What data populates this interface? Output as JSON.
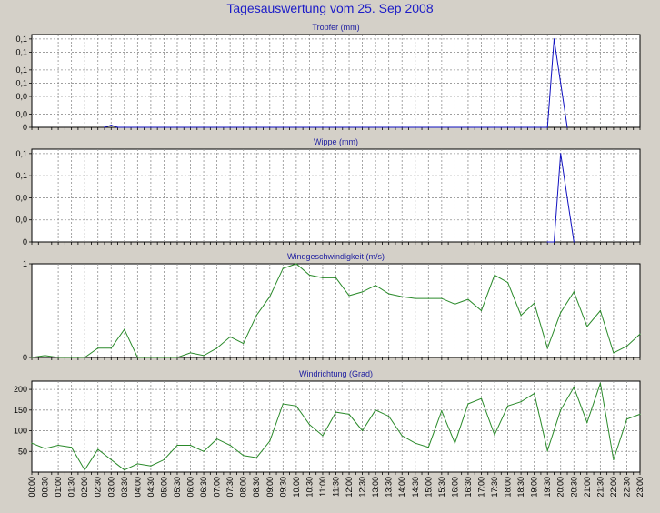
{
  "page": {
    "title": "Tagesauswertung vom 25. Sep 2008"
  },
  "colors": {
    "background": "#d4d0c8",
    "plot_bg": "#ffffff",
    "blue_series": "#1010c0",
    "green_series": "#2a8a2a",
    "title": "#1c1cc8"
  },
  "chart_data": [
    {
      "type": "line",
      "title": "Tropfer (mm)",
      "color": "#1010c0",
      "ylim": [
        0,
        0.21
      ],
      "yticks": [
        0,
        0.03,
        0.07,
        0.1,
        0.13,
        0.17,
        0.2
      ],
      "ytick_labels": [
        "0",
        "0,0",
        "0,0",
        "0,1",
        "0,1",
        "0,1",
        "0,1"
      ],
      "x": [
        "02:45",
        "03:00",
        "03:15",
        "18:45",
        "19:00",
        "19:15",
        "19:30",
        "19:45",
        "20:00",
        "20:15"
      ],
      "values": [
        0,
        0.005,
        0,
        0,
        0,
        0,
        0,
        0.2,
        0.1,
        0
      ]
    },
    {
      "type": "line",
      "title": "Wippe (mm)",
      "color": "#1010c0",
      "ylim": [
        0,
        0.21
      ],
      "yticks": [
        0,
        0.05,
        0.1,
        0.15,
        0.2
      ],
      "ytick_labels": [
        "0",
        "0,0",
        "0,0",
        "0,1",
        "0,1"
      ],
      "x": [
        "19:30",
        "19:45",
        "20:00",
        "20:15",
        "20:30"
      ],
      "values": [
        0,
        0,
        0.2,
        0.1,
        0
      ]
    },
    {
      "type": "line",
      "title": "Windgeschwindigkeit (m/s)",
      "color": "#2a8a2a",
      "ylim": [
        0,
        1
      ],
      "yticks": [
        0,
        1
      ],
      "ytick_labels": [
        "0",
        "1"
      ],
      "x": [
        "00:00",
        "00:30",
        "01:00",
        "01:30",
        "02:00",
        "02:30",
        "03:00",
        "03:30",
        "04:00",
        "04:30",
        "05:00",
        "05:30",
        "06:00",
        "06:30",
        "07:00",
        "07:30",
        "08:00",
        "08:30",
        "09:00",
        "09:30",
        "10:00",
        "10:30",
        "11:00",
        "11:30",
        "12:00",
        "12:30",
        "13:00",
        "13:30",
        "14:00",
        "14:30",
        "15:00",
        "15:30",
        "16:00",
        "16:30",
        "17:00",
        "17:30",
        "18:00",
        "18:30",
        "19:00",
        "19:30",
        "20:00",
        "20:30",
        "21:00",
        "21:30",
        "22:00",
        "22:30",
        "23:00"
      ],
      "values": [
        0,
        0.02,
        0,
        0,
        0,
        0.1,
        0.1,
        0.3,
        0,
        0,
        0,
        0,
        0.05,
        0.02,
        0.1,
        0.22,
        0.15,
        0.45,
        0.65,
        0.95,
        1.0,
        0.88,
        0.85,
        0.85,
        0.66,
        0.7,
        0.77,
        0.68,
        0.65,
        0.63,
        0.63,
        0.63,
        0.57,
        0.62,
        0.5,
        0.88,
        0.8,
        0.45,
        0.58,
        0.1,
        0.48,
        0.7,
        0.33,
        0.5,
        0.05,
        0.12,
        0.25
      ]
    },
    {
      "type": "line",
      "title": "Windrichtung (Grad)",
      "color": "#2a8a2a",
      "ylim": [
        0,
        220
      ],
      "yticks": [
        50,
        100,
        150,
        200
      ],
      "ytick_labels": [
        "50",
        "100",
        "150",
        "200"
      ],
      "x": [
        "00:00",
        "00:30",
        "01:00",
        "01:30",
        "02:00",
        "02:30",
        "03:00",
        "03:30",
        "04:00",
        "04:30",
        "05:00",
        "05:30",
        "06:00",
        "06:30",
        "07:00",
        "07:30",
        "08:00",
        "08:30",
        "09:00",
        "09:30",
        "10:00",
        "10:30",
        "11:00",
        "11:30",
        "12:00",
        "12:30",
        "13:00",
        "13:30",
        "14:00",
        "14:30",
        "15:00",
        "15:30",
        "16:00",
        "16:30",
        "17:00",
        "17:30",
        "18:00",
        "18:30",
        "19:00",
        "19:30",
        "20:00",
        "20:30",
        "21:00",
        "21:30",
        "22:00",
        "22:30",
        "23:00"
      ],
      "values": [
        70,
        57,
        65,
        60,
        5,
        55,
        30,
        5,
        20,
        15,
        30,
        65,
        65,
        50,
        80,
        65,
        40,
        35,
        75,
        165,
        160,
        115,
        88,
        145,
        140,
        100,
        150,
        135,
        88,
        70,
        60,
        148,
        70,
        165,
        178,
        90,
        160,
        170,
        190,
        52,
        150,
        205,
        120,
        215,
        30,
        128,
        140
      ]
    }
  ],
  "x_axis": {
    "labels": [
      "00:00",
      "00:30",
      "01:00",
      "01:30",
      "02:00",
      "02:30",
      "03:00",
      "03:30",
      "04:00",
      "04:30",
      "05:00",
      "05:30",
      "06:00",
      "06:30",
      "07:00",
      "07:30",
      "08:00",
      "08:30",
      "09:00",
      "09:30",
      "10:00",
      "10:30",
      "11:00",
      "11:30",
      "12:00",
      "12:30",
      "13:00",
      "13:30",
      "14:00",
      "14:30",
      "15:00",
      "15:30",
      "16:00",
      "16:30",
      "17:00",
      "17:30",
      "18:00",
      "18:30",
      "19:00",
      "19:30",
      "20:00",
      "20:30",
      "21:00",
      "21:30",
      "22:00",
      "22:30",
      "23:00"
    ]
  }
}
